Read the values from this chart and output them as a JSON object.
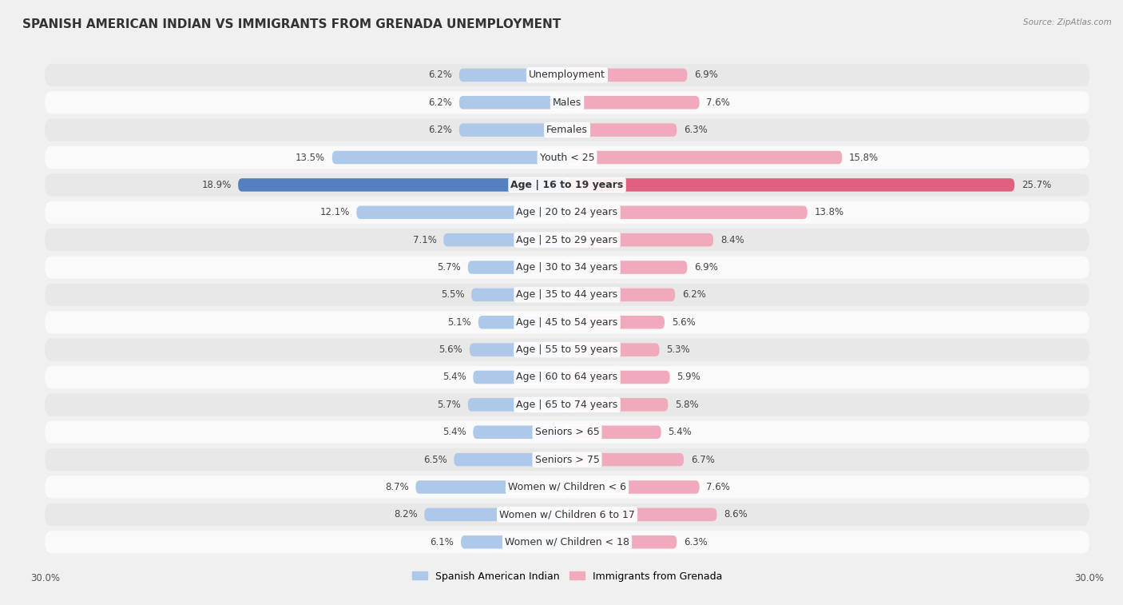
{
  "title": "SPANISH AMERICAN INDIAN VS IMMIGRANTS FROM GRENADA UNEMPLOYMENT",
  "source": "Source: ZipAtlas.com",
  "categories": [
    "Unemployment",
    "Males",
    "Females",
    "Youth < 25",
    "Age | 16 to 19 years",
    "Age | 20 to 24 years",
    "Age | 25 to 29 years",
    "Age | 30 to 34 years",
    "Age | 35 to 44 years",
    "Age | 45 to 54 years",
    "Age | 55 to 59 years",
    "Age | 60 to 64 years",
    "Age | 65 to 74 years",
    "Seniors > 65",
    "Seniors > 75",
    "Women w/ Children < 6",
    "Women w/ Children 6 to 17",
    "Women w/ Children < 18"
  ],
  "left_values": [
    6.2,
    6.2,
    6.2,
    13.5,
    18.9,
    12.1,
    7.1,
    5.7,
    5.5,
    5.1,
    5.6,
    5.4,
    5.7,
    5.4,
    6.5,
    8.7,
    8.2,
    6.1
  ],
  "right_values": [
    6.9,
    7.6,
    6.3,
    15.8,
    25.7,
    13.8,
    8.4,
    6.9,
    6.2,
    5.6,
    5.3,
    5.9,
    5.8,
    5.4,
    6.7,
    7.6,
    8.6,
    6.3
  ],
  "left_color": "#adc8e8",
  "right_color": "#f0aabb",
  "left_highlight_color": "#5580c0",
  "right_highlight_color": "#e06080",
  "highlight_index": 4,
  "left_label": "Spanish American Indian",
  "right_label": "Immigrants from Grenada",
  "max_value": 30.0,
  "bg_color": "#f0f0f0",
  "row_light_color": "#fafafa",
  "row_dark_color": "#e8e8e8",
  "title_fontsize": 11,
  "label_fontsize": 9,
  "value_fontsize": 8.5,
  "axis_label_fontsize": 8.5
}
